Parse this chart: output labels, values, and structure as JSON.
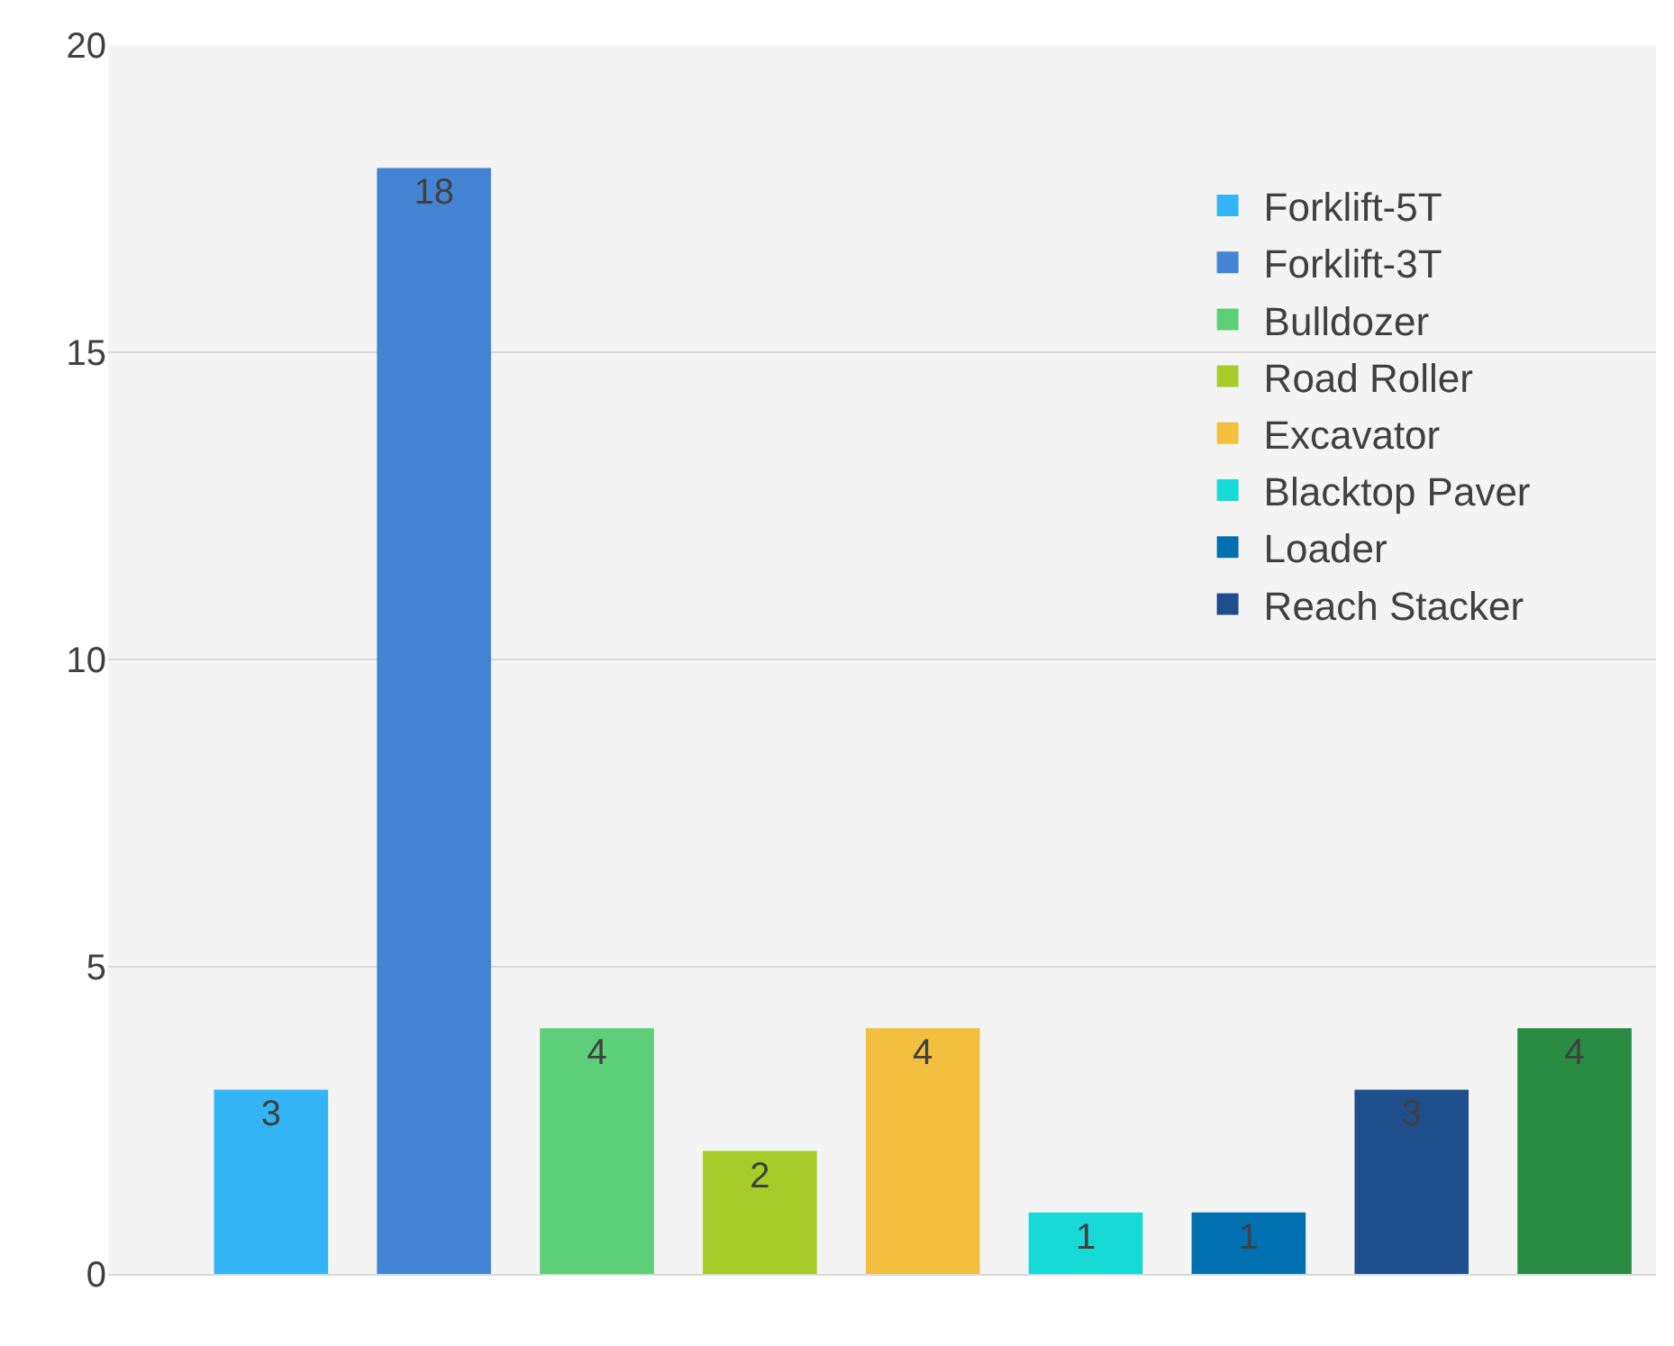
{
  "chart_data": {
    "type": "bar",
    "categories": [
      null,
      null,
      null,
      null,
      null,
      null,
      null,
      null,
      null
    ],
    "series": [
      {
        "name": "Forklift-5T",
        "color": "#33b4f5",
        "values": [
          3,
          null,
          null,
          null,
          null,
          null,
          null,
          null,
          null
        ]
      },
      {
        "name": "Forklift-3T",
        "color": "#4484d4",
        "values": [
          null,
          18,
          null,
          null,
          null,
          null,
          null,
          null,
          null
        ]
      },
      {
        "name": "Bulldozer",
        "color": "#5ccf78",
        "values": [
          null,
          null,
          4,
          null,
          null,
          null,
          null,
          null,
          null
        ]
      },
      {
        "name": "Road Roller",
        "color": "#a6cc2a",
        "values": [
          null,
          null,
          null,
          2,
          null,
          null,
          null,
          null,
          null
        ]
      },
      {
        "name": "Excavator",
        "color": "#f2bf3e",
        "values": [
          null,
          null,
          null,
          null,
          4,
          null,
          null,
          null,
          null
        ]
      },
      {
        "name": "Blacktop Paver",
        "color": "#17d9d6",
        "values": [
          null,
          null,
          null,
          null,
          null,
          1,
          null,
          null,
          null
        ]
      },
      {
        "name": "Loader",
        "color": "#0070b0",
        "values": [
          null,
          null,
          null,
          null,
          null,
          null,
          1,
          null,
          null
        ]
      },
      {
        "name": "Reach Stacker",
        "color": "#1f4e8c",
        "values": [
          null,
          null,
          null,
          null,
          null,
          null,
          null,
          3,
          null
        ]
      },
      {
        "color": "#2a8c42",
        "values": [
          null,
          null,
          null,
          null,
          null,
          null,
          null,
          null,
          4
        ]
      }
    ],
    "ylim": [
      0,
      20
    ],
    "yticks": [
      0,
      5,
      10,
      15,
      20
    ],
    "grid": "y",
    "legend": "top right",
    "data_labels": true,
    "tick_labels": "y"
  }
}
